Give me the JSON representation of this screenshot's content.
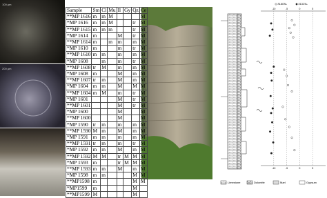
{
  "micrographs": [
    {
      "scale": "100 µm"
    },
    {
      "scale": "200 µm"
    }
  ],
  "table": {
    "header": [
      "Sample",
      "Sm",
      "Cl",
      "Mu",
      "Il",
      "Gy",
      "Qz",
      "Ce"
    ],
    "rows": [
      [
        "**MP 1616",
        "m",
        "m",
        "M",
        null,
        null,
        null,
        "M"
      ],
      [
        "*MP 1616",
        "m",
        "m",
        "M",
        null,
        null,
        "tr",
        "M"
      ],
      [
        "**MP 1615",
        "m",
        "m",
        "m",
        null,
        null,
        "tr",
        "M"
      ],
      [
        "*MP 1614",
        "m",
        null,
        null,
        "M",
        null,
        "tr",
        "M"
      ],
      [
        "**MP 1614",
        "m",
        null,
        "m",
        "m",
        null,
        "m",
        "M"
      ],
      [
        "*MP 1610",
        "m",
        null,
        null,
        "m",
        null,
        "tr",
        "M"
      ],
      [
        "**MP 1610",
        "m",
        "m",
        null,
        "m",
        null,
        "m",
        "M"
      ],
      [
        "*MP 1608",
        null,
        "m",
        null,
        "m",
        null,
        "tr",
        "M"
      ],
      [
        "**MP 1608",
        "tr",
        "M",
        null,
        "m",
        null,
        "m",
        "M"
      ],
      [
        "*MP 1608",
        "m",
        null,
        null,
        "M",
        null,
        "m",
        "M"
      ],
      [
        "**MP 1607",
        "tr",
        "m",
        null,
        "M",
        null,
        "m",
        "M"
      ],
      [
        "*MP 1604",
        "m",
        "m",
        null,
        "M",
        null,
        "M",
        "M"
      ],
      [
        "**MP 1604",
        "m",
        "M",
        null,
        "m",
        null,
        "tr",
        "M"
      ],
      [
        "*MP 1601",
        null,
        null,
        null,
        "M",
        null,
        "tr",
        "M"
      ],
      [
        "**MP 1601",
        null,
        null,
        null,
        "M",
        null,
        "tr",
        "M"
      ],
      [
        "*MP 1600",
        null,
        null,
        null,
        "M",
        null,
        null,
        "M"
      ],
      [
        "**MP 1600",
        null,
        null,
        null,
        "M",
        null,
        null,
        "M"
      ],
      [
        "*MP 1590",
        "tr",
        "m",
        null,
        "m",
        null,
        "m",
        "M"
      ],
      [
        "**MP 1590",
        "M",
        "m",
        null,
        "M",
        null,
        "m",
        "M"
      ],
      [
        "*MP 1591",
        "m",
        "m",
        null,
        "m",
        null,
        "m",
        "M"
      ],
      [
        "**MP 1591",
        "tr",
        "m",
        null,
        "m",
        null,
        "tr",
        "M"
      ],
      [
        "*MP 1592",
        "m",
        "m",
        null,
        "M",
        null,
        "m",
        "M"
      ],
      [
        "**MP 1592",
        "M",
        "M",
        null,
        "tr",
        "M",
        "M",
        "M"
      ],
      [
        "*MP 1593",
        "m",
        null,
        null,
        "tr",
        "M",
        "M",
        "M"
      ],
      [
        "**MP 1593",
        "m",
        "m",
        null,
        "M",
        null,
        "m",
        "M"
      ],
      [
        "*MP 1598",
        "m",
        "m",
        null,
        null,
        null,
        "M",
        "M"
      ],
      [
        "**MP1598",
        "m",
        null,
        null,
        null,
        null,
        "M",
        "M"
      ],
      [
        "*MP1599",
        "m",
        null,
        null,
        null,
        null,
        "M",
        null
      ],
      [
        "**MP1599",
        "M",
        null,
        null,
        null,
        null,
        "M",
        null
      ]
    ]
  },
  "plot": {
    "xlim": [
      -15,
      10
    ],
    "ylim": [
      0,
      100
    ],
    "xticks": [
      -10,
      -5,
      0,
      5
    ],
    "series": [
      {
        "name": "δ18O‰",
        "color": "#222",
        "marker": "open",
        "x": [
          -3,
          -2,
          -4,
          -3.5,
          -2.5,
          -6,
          -5,
          -4.5,
          -3,
          -6.5,
          -5.5,
          -4,
          -3,
          -2
        ],
        "y": [
          6,
          9,
          11,
          14,
          17,
          38,
          42,
          48,
          52,
          62,
          70,
          75,
          82,
          90
        ]
      },
      {
        "name": "δ13C‰",
        "color": "#222",
        "marker": "filled",
        "x": [
          -11,
          -10.5,
          -11.5,
          -10,
          -11,
          -10.8,
          -11.2,
          -10.4,
          -11,
          -10.6,
          -11.4,
          -10.2,
          -10.9
        ],
        "y": [
          8,
          12,
          16,
          36,
          40,
          45,
          55,
          63,
          66,
          72,
          78,
          85,
          92
        ]
      }
    ]
  },
  "legend": [
    "Limestone",
    "Dolomite",
    "Marl",
    "Gypsum"
  ]
}
